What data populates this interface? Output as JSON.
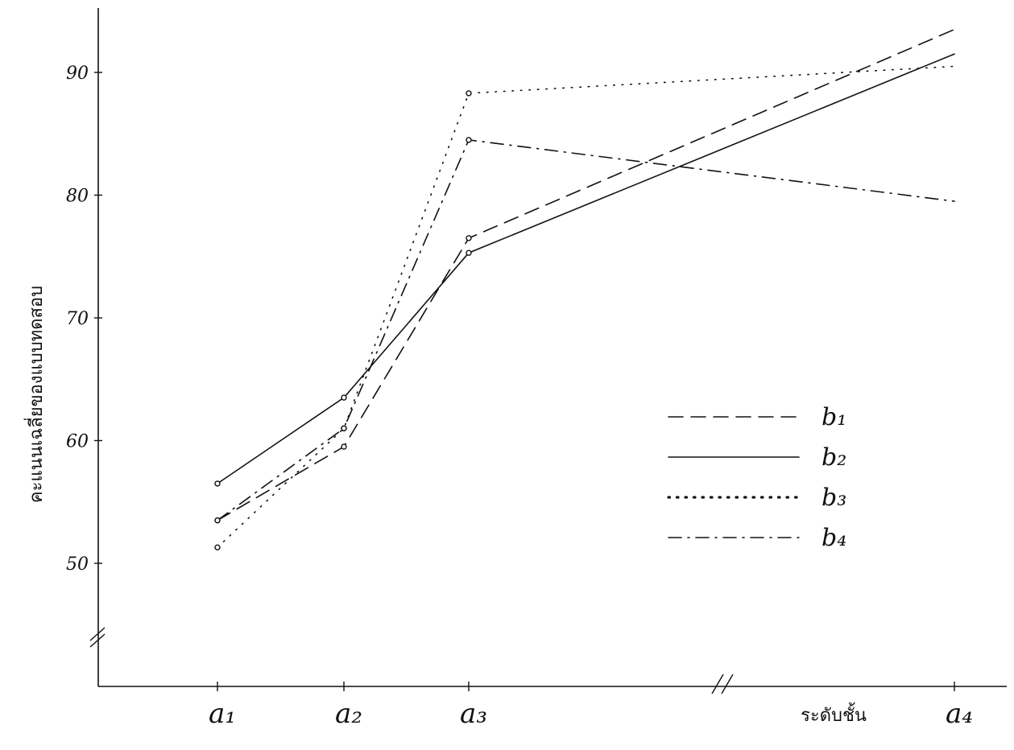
{
  "chart_data": {
    "type": "line",
    "categories": [
      "a₁",
      "a₂",
      "a₃",
      "a₄"
    ],
    "xlabel": "ระดับชั้น",
    "ylabel": "คะแนนเฉลี่ยของแบบทดสอบ",
    "yticks": [
      50,
      60,
      70,
      80,
      90
    ],
    "ylim": [
      44,
      95
    ],
    "axis_break_marks": true,
    "grid": false,
    "legend_position": "right-middle",
    "series": [
      {
        "name": "b₁",
        "style": "dashed",
        "values": [
          53.5,
          59.5,
          76.5,
          93.5
        ]
      },
      {
        "name": "b₂",
        "style": "solid",
        "values": [
          56.5,
          63.5,
          75.3,
          91.5
        ]
      },
      {
        "name": "b₃",
        "style": "dotted",
        "values": [
          51.3,
          61.0,
          88.3,
          90.5
        ]
      },
      {
        "name": "b₄",
        "style": "dash-dot",
        "values": [
          53.5,
          61.0,
          84.5,
          79.5
        ]
      }
    ]
  }
}
